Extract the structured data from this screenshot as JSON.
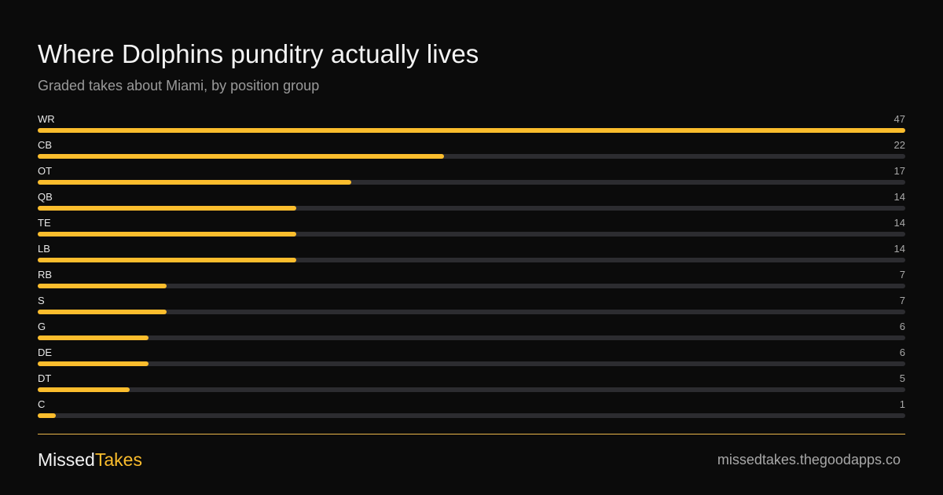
{
  "header": {
    "title": "Where Dolphins punditry actually lives",
    "subtitle": "Graded takes about Miami, by position group"
  },
  "footer": {
    "brand_part1": "Missed",
    "brand_part2": "Takes",
    "url": "missedtakes.thegoodapps.co"
  },
  "colors": {
    "background": "#0b0b0b",
    "bar_fill": "#fbbd2d",
    "bar_track": "#2c2c30",
    "divider": "#e9b54a"
  },
  "chart_data": {
    "type": "bar",
    "orientation": "horizontal",
    "title": "Where Dolphins punditry actually lives",
    "subtitle": "Graded takes about Miami, by position group",
    "categories": [
      "WR",
      "CB",
      "OT",
      "QB",
      "TE",
      "LB",
      "RB",
      "S",
      "G",
      "DE",
      "DT",
      "C"
    ],
    "values": [
      47,
      22,
      17,
      14,
      14,
      14,
      7,
      7,
      6,
      6,
      5,
      1
    ],
    "xlim": [
      0,
      47
    ],
    "grid": false,
    "legend": "none"
  }
}
